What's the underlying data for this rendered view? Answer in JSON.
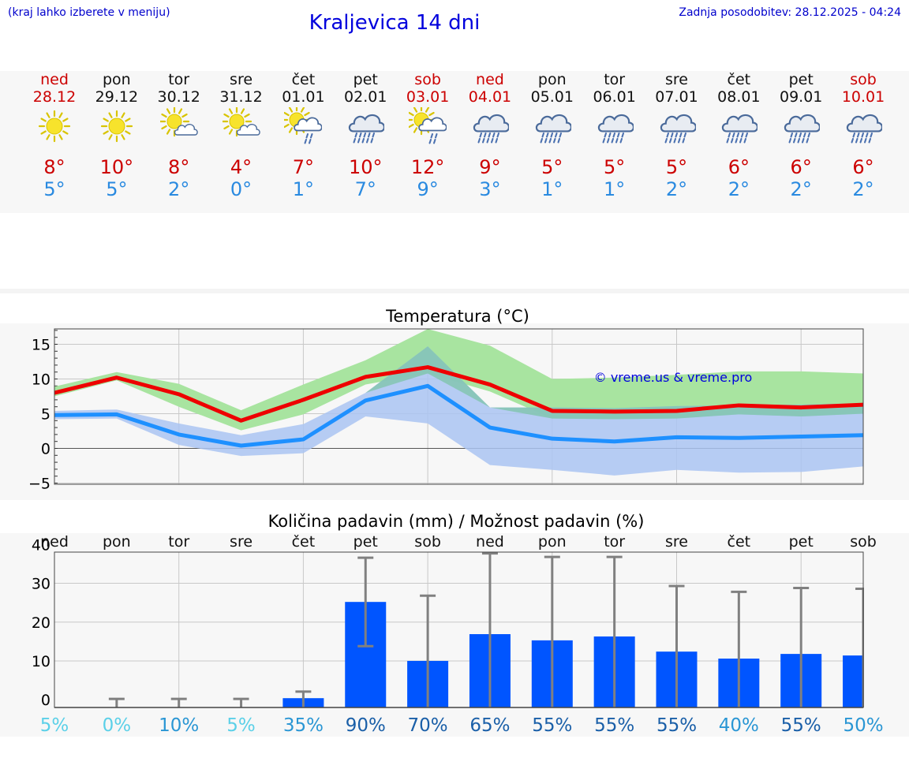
{
  "header": {
    "hint": "(kraj lahko izberete v meniju)",
    "title": "Kraljevica 14 dni",
    "updated": "Zadnja posodobitev: 28.12.2025 - 04:24"
  },
  "days": [
    {
      "name": "ned",
      "date": "28.12",
      "weekend": true,
      "icon": "sun-icon",
      "tmax": "8°",
      "tmin": "5°"
    },
    {
      "name": "pon",
      "date": "29.12",
      "weekend": false,
      "icon": "sun-icon",
      "tmax": "10°",
      "tmin": "5°"
    },
    {
      "name": "tor",
      "date": "30.12",
      "weekend": false,
      "icon": "sun-cloud-icon",
      "tmax": "8°",
      "tmin": "2°"
    },
    {
      "name": "sre",
      "date": "31.12",
      "weekend": false,
      "icon": "sun-cloud-icon",
      "tmax": "4°",
      "tmin": "0°"
    },
    {
      "name": "čet",
      "date": "01.01",
      "weekend": false,
      "icon": "sun-rain-icon",
      "tmax": "7°",
      "tmin": "1°"
    },
    {
      "name": "pet",
      "date": "02.01",
      "weekend": false,
      "icon": "rain-icon",
      "tmax": "10°",
      "tmin": "7°"
    },
    {
      "name": "sob",
      "date": "03.01",
      "weekend": true,
      "icon": "sun-rain-icon",
      "tmax": "12°",
      "tmin": "9°"
    },
    {
      "name": "ned",
      "date": "04.01",
      "weekend": true,
      "icon": "rain-icon",
      "tmax": "9°",
      "tmin": "3°"
    },
    {
      "name": "pon",
      "date": "05.01",
      "weekend": false,
      "icon": "rain-icon",
      "tmax": "5°",
      "tmin": "1°"
    },
    {
      "name": "tor",
      "date": "06.01",
      "weekend": false,
      "icon": "rain-icon",
      "tmax": "5°",
      "tmin": "1°"
    },
    {
      "name": "sre",
      "date": "07.01",
      "weekend": false,
      "icon": "rain-icon",
      "tmax": "5°",
      "tmin": "2°"
    },
    {
      "name": "čet",
      "date": "08.01",
      "weekend": false,
      "icon": "rain-icon",
      "tmax": "6°",
      "tmin": "2°"
    },
    {
      "name": "pet",
      "date": "09.01",
      "weekend": false,
      "icon": "rain-icon",
      "tmax": "6°",
      "tmin": "2°"
    },
    {
      "name": "sob",
      "date": "10.01",
      "weekend": true,
      "icon": "rain-icon",
      "tmax": "6°",
      "tmin": "2°"
    }
  ],
  "colors": {
    "weekend": "#cc0000",
    "tmax": "#cc0000",
    "tmin": "#2a8ae0",
    "title": "#0000dd",
    "max_line": "#ee0000",
    "min_line": "#1e90ff",
    "max_band": "#a8e4a0",
    "min_band": "#aac4f2",
    "overlap_band": "#7cc4a8",
    "precip_bar": "#0055ff",
    "error_bar": "#808080",
    "prob_low": "#5bd0e8",
    "prob_mid": "#2a96d4",
    "prob_high": "#1a5fa8"
  },
  "chart_data": [
    {
      "type": "line",
      "title": "Temperatura (°C)",
      "watermark": "© vreme.us & vreme.pro",
      "x": [
        "28.12",
        "29.12",
        "30.12",
        "31.12",
        "01.01",
        "02.01",
        "03.01",
        "04.01",
        "05.01",
        "06.01",
        "07.01",
        "08.01",
        "09.01",
        "10.01"
      ],
      "ylim": [
        -5,
        17.5
      ],
      "yticks": [
        "−5",
        "0",
        "5",
        "10",
        "15"
      ],
      "grid": true,
      "series": [
        {
          "key": "max",
          "values": [
            8.0,
            10.2,
            7.8,
            4.0,
            7.0,
            10.3,
            11.7,
            9.2,
            5.4,
            5.3,
            5.4,
            6.2,
            5.9,
            6.3
          ],
          "band_low": [
            7.5,
            9.8,
            6.0,
            2.6,
            4.9,
            9.2,
            10.8,
            8.2,
            4.3,
            4.2,
            4.3,
            4.9,
            4.6,
            5.0
          ],
          "band_high": [
            8.9,
            11.0,
            9.3,
            5.5,
            9.2,
            12.7,
            17.2,
            14.8,
            10.0,
            10.2,
            10.6,
            11.1,
            11.1,
            10.8
          ]
        },
        {
          "key": "min",
          "values": [
            4.8,
            4.9,
            2.0,
            0.4,
            1.3,
            6.9,
            9.0,
            3.0,
            1.4,
            1.0,
            1.6,
            1.5,
            1.7,
            1.9
          ],
          "band_low": [
            4.2,
            4.3,
            0.5,
            -1.1,
            -0.7,
            4.6,
            3.6,
            -2.4,
            -3.1,
            -3.9,
            -3.1,
            -3.5,
            -3.4,
            -2.6
          ],
          "band_high": [
            5.4,
            5.6,
            3.6,
            1.9,
            3.5,
            8.0,
            14.7,
            5.9,
            5.9,
            5.8,
            6.1,
            6.2,
            6.3,
            6.5
          ]
        }
      ]
    },
    {
      "type": "bar",
      "title": "Količina padavin (mm) / Možnost padavin (%)",
      "categories": [
        "ned",
        "pon",
        "tor",
        "sre",
        "čet",
        "pet",
        "sob",
        "ned",
        "pon",
        "tor",
        "sre",
        "čet",
        "pet",
        "sob"
      ],
      "values": [
        0,
        0,
        0,
        0,
        0.4,
        25.2,
        10.0,
        16.9,
        15.3,
        16.3,
        12.4,
        10.6,
        11.8,
        11.4
      ],
      "err_low": [
        0,
        0,
        0,
        0,
        0,
        13.8,
        0,
        0,
        0,
        0,
        0,
        0,
        0,
        0
      ],
      "err_high": [
        0,
        0.2,
        0.2,
        0.2,
        2.1,
        36.6,
        26.8,
        37.7,
        36.8,
        36.8,
        29.3,
        27.8,
        28.8,
        28.6
      ],
      "ylim": [
        -2,
        40
      ],
      "yticks": [
        "0",
        "10",
        "20",
        "30",
        "40"
      ],
      "probabilities": [
        "5%",
        "0%",
        "10%",
        "5%",
        "35%",
        "90%",
        "70%",
        "65%",
        "55%",
        "55%",
        "55%",
        "40%",
        "55%",
        "50%"
      ],
      "grid": true
    }
  ]
}
